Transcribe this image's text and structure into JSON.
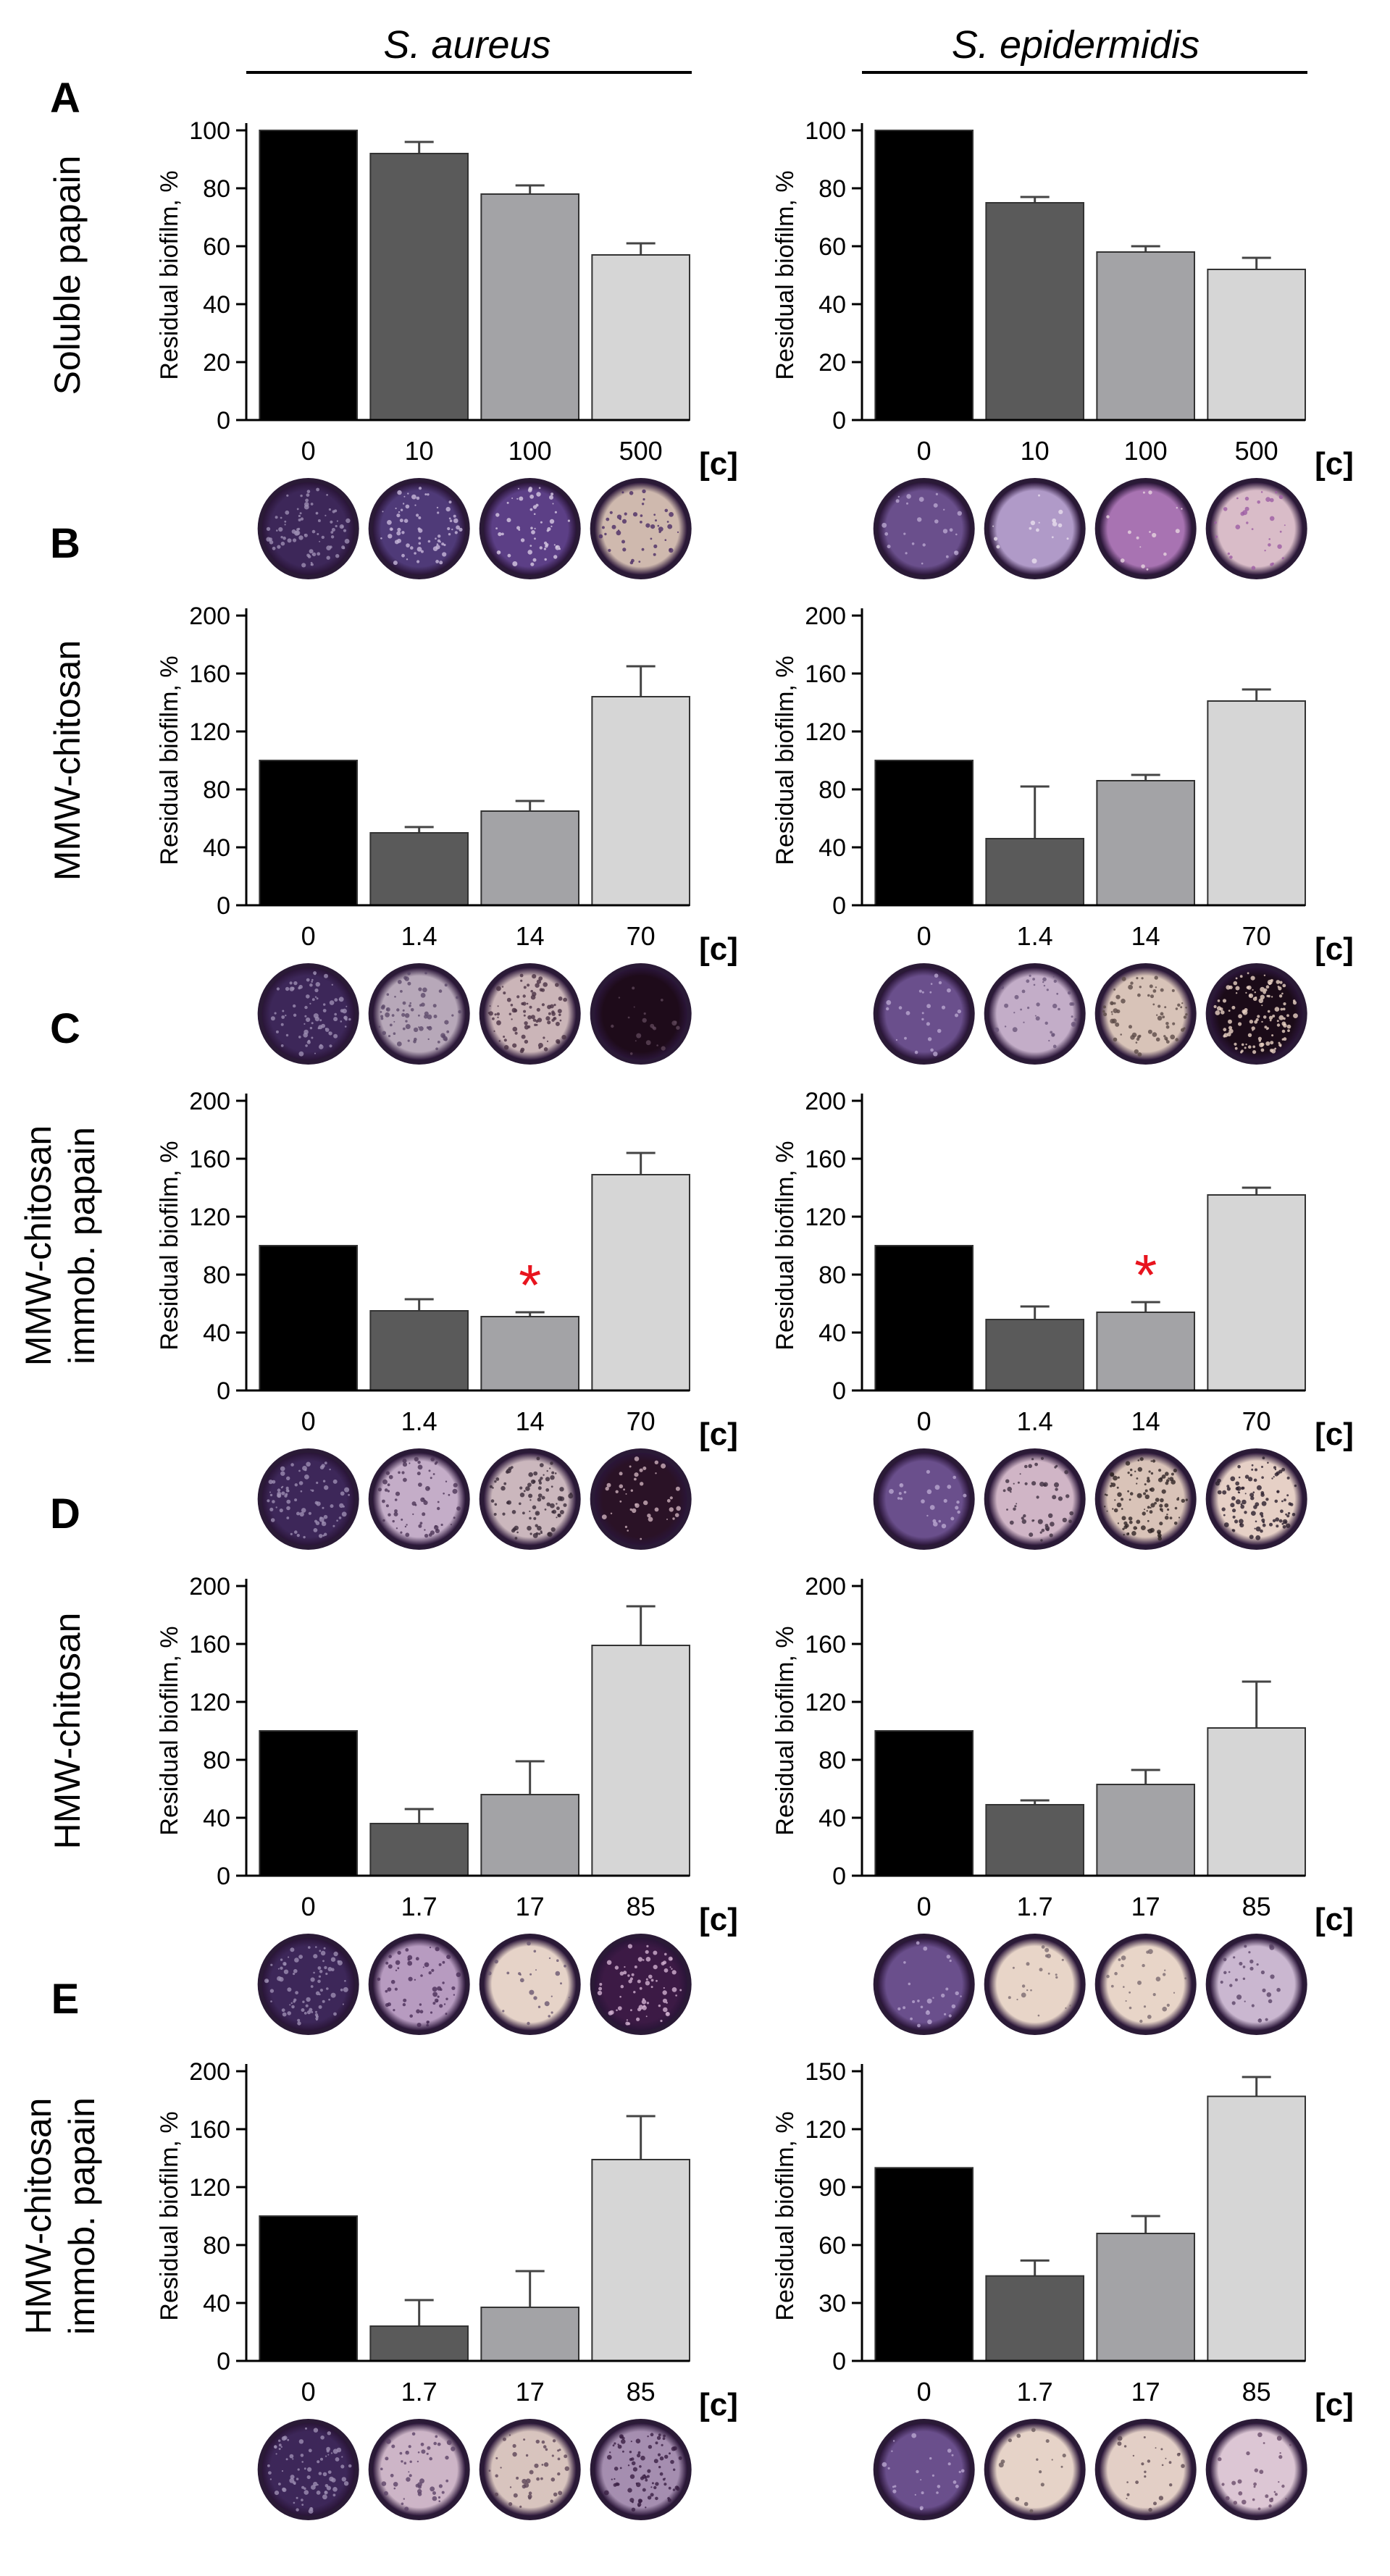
{
  "figure": {
    "species": [
      "S. aureus",
      "S. epidermidis"
    ],
    "conc_label": "[c]",
    "ylabel": "Residual biofilm, %"
  },
  "chart_data": [
    {
      "type": "bar",
      "panel": "A",
      "row_label": [
        "Soluble papain"
      ],
      "species": "S. aureus",
      "categories": [
        "0",
        "10",
        "100",
        "500"
      ],
      "values": [
        100,
        92,
        78,
        57
      ],
      "errors": [
        0,
        4,
        3,
        4
      ],
      "ylim": [
        0,
        100
      ],
      "yticks": [
        0,
        20,
        40,
        60,
        80,
        100
      ],
      "ylabel": "Residual biofilm, %",
      "xlabel": "[c]",
      "asterisk_index": null
    },
    {
      "type": "bar",
      "panel": "A",
      "row_label": [
        "Soluble papain"
      ],
      "species": "S. epidermidis",
      "categories": [
        "0",
        "10",
        "100",
        "500"
      ],
      "values": [
        100,
        75,
        58,
        52
      ],
      "errors": [
        0,
        2,
        2,
        4
      ],
      "ylim": [
        0,
        100
      ],
      "yticks": [
        0,
        20,
        40,
        60,
        80,
        100
      ],
      "ylabel": "Residual biofilm, %",
      "xlabel": "[c]",
      "asterisk_index": null
    },
    {
      "type": "bar",
      "panel": "B",
      "row_label": [
        "MMW-chitosan"
      ],
      "species": "S. aureus",
      "categories": [
        "0",
        "1.4",
        "14",
        "70"
      ],
      "values": [
        100,
        50,
        65,
        144
      ],
      "errors": [
        0,
        4,
        7,
        21
      ],
      "ylim": [
        0,
        200
      ],
      "yticks": [
        0,
        40,
        80,
        120,
        160,
        200
      ],
      "ylabel": "Residual biofilm, %",
      "xlabel": "[c]",
      "asterisk_index": null
    },
    {
      "type": "bar",
      "panel": "B",
      "row_label": [
        "MMW-chitosan"
      ],
      "species": "S. epidermidis",
      "categories": [
        "0",
        "1.4",
        "14",
        "70"
      ],
      "values": [
        100,
        46,
        86,
        141
      ],
      "errors": [
        0,
        36,
        4,
        8
      ],
      "ylim": [
        0,
        200
      ],
      "yticks": [
        0,
        40,
        80,
        120,
        160,
        200
      ],
      "ylabel": "Residual biofilm, %",
      "xlabel": "[c]",
      "asterisk_index": null
    },
    {
      "type": "bar",
      "panel": "C",
      "row_label": [
        "MMW-chitosan",
        "immob. papain"
      ],
      "species": "S. aureus",
      "categories": [
        "0",
        "1.4",
        "14",
        "70"
      ],
      "values": [
        100,
        55,
        51,
        149
      ],
      "errors": [
        0,
        8,
        3,
        15
      ],
      "ylim": [
        0,
        200
      ],
      "yticks": [
        0,
        40,
        80,
        120,
        160,
        200
      ],
      "ylabel": "Residual biofilm, %",
      "xlabel": "[c]",
      "asterisk_index": 2
    },
    {
      "type": "bar",
      "panel": "C",
      "row_label": [
        "MMW-chitosan",
        "immob. papain"
      ],
      "species": "S. epidermidis",
      "categories": [
        "0",
        "1.4",
        "14",
        "70"
      ],
      "values": [
        100,
        49,
        54,
        135
      ],
      "errors": [
        0,
        9,
        7,
        5
      ],
      "ylim": [
        0,
        200
      ],
      "yticks": [
        0,
        40,
        80,
        120,
        160,
        200
      ],
      "ylabel": "Residual biofilm, %",
      "xlabel": "[c]",
      "asterisk_index": 2
    },
    {
      "type": "bar",
      "panel": "D",
      "row_label": [
        "HMW-chitosan"
      ],
      "species": "S. aureus",
      "categories": [
        "0",
        "1.7",
        "17",
        "85"
      ],
      "values": [
        100,
        36,
        56,
        159
      ],
      "errors": [
        0,
        10,
        23,
        27
      ],
      "ylim": [
        0,
        200
      ],
      "yticks": [
        0,
        40,
        80,
        120,
        160,
        200
      ],
      "ylabel": "Residual biofilm, %",
      "xlabel": "[c]",
      "asterisk_index": null
    },
    {
      "type": "bar",
      "panel": "D",
      "row_label": [
        "HMW-chitosan"
      ],
      "species": "S. epidermidis",
      "categories": [
        "0",
        "1.7",
        "17",
        "85"
      ],
      "values": [
        100,
        49,
        63,
        102
      ],
      "errors": [
        0,
        3,
        10,
        32
      ],
      "ylim": [
        0,
        200
      ],
      "yticks": [
        0,
        40,
        80,
        120,
        160,
        200
      ],
      "ylabel": "Residual biofilm, %",
      "xlabel": "[c]",
      "asterisk_index": null
    },
    {
      "type": "bar",
      "panel": "E",
      "row_label": [
        "HMW-chitosan",
        "immob. papain"
      ],
      "species": "S. aureus",
      "categories": [
        "0",
        "1.7",
        "17",
        "85"
      ],
      "values": [
        100,
        24,
        37,
        139
      ],
      "errors": [
        0,
        18,
        25,
        30
      ],
      "ylim": [
        0,
        200
      ],
      "yticks": [
        0,
        40,
        80,
        120,
        160,
        200
      ],
      "ylabel": "Residual biofilm, %",
      "xlabel": "[c]",
      "asterisk_index": null
    },
    {
      "type": "bar",
      "panel": "E",
      "row_label": [
        "HMW-chitosan",
        "immob. papain"
      ],
      "species": "S. epidermidis",
      "categories": [
        "0",
        "1.7",
        "17",
        "85"
      ],
      "values": [
        100,
        44,
        66,
        137
      ],
      "errors": [
        0,
        8,
        9,
        10
      ],
      "ylim": [
        0,
        150
      ],
      "yticks": [
        0,
        30,
        60,
        90,
        120,
        150
      ],
      "ylabel": "Residual biofilm, %",
      "xlabel": "[c]",
      "asterisk_index": null
    }
  ],
  "colors": {
    "bars": [
      "#000000",
      "#5a5a5a",
      "#a3a3a6",
      "#d6d6d6"
    ],
    "asterisk": "#e8141e"
  },
  "wells": [
    [
      {
        "tone": "#3d2759",
        "speck": "#9c8db2",
        "n": 80
      },
      {
        "tone": "#4f3a78",
        "speck": "#c7b8da",
        "n": 70
      },
      {
        "tone": "#5c3f86",
        "speck": "#d7c9e2",
        "n": 55
      },
      {
        "tone": "#cfb9ae",
        "speck": "#4b2d65",
        "n": 45
      }
    ],
    [
      {
        "tone": "#6a4f8c",
        "speck": "#b9a6cf",
        "n": 25
      },
      {
        "tone": "#b09ac8",
        "speck": "#e9dfee",
        "n": 15
      },
      {
        "tone": "#a873b2",
        "speck": "#e6d4de",
        "n": 15
      },
      {
        "tone": "#d9bcc8",
        "speck": "#9c5ca4",
        "n": 30
      }
    ],
    [
      {
        "tone": "#3d2759",
        "speck": "#9c8db2",
        "n": 80
      },
      {
        "tone": "#b7a8b9",
        "speck": "#5c4a6a",
        "n": 70
      },
      {
        "tone": "#cbb5b8",
        "speck": "#4a3244",
        "n": 90
      },
      {
        "tone": "#1e0b1a",
        "speck": "#5c4558",
        "n": 20
      }
    ],
    [
      {
        "tone": "#6a4f8c",
        "speck": "#b9a6cf",
        "n": 25
      },
      {
        "tone": "#c3adc8",
        "speck": "#6b567a",
        "n": 40
      },
      {
        "tone": "#d8c3b8",
        "speck": "#5d4b47",
        "n": 70
      },
      {
        "tone": "#1b0b18",
        "speck": "#ead2c4",
        "n": 120
      }
    ],
    [
      {
        "tone": "#3d2759",
        "speck": "#9c8db2",
        "n": 80
      },
      {
        "tone": "#c4adc8",
        "speck": "#4c3556",
        "n": 70
      },
      {
        "tone": "#cbb7bd",
        "speck": "#3a2a38",
        "n": 90
      },
      {
        "tone": "#2a1226",
        "speck": "#cdb0bc",
        "n": 40
      }
    ],
    [
      {
        "tone": "#6a4f8c",
        "speck": "#b9a6cf",
        "n": 25
      },
      {
        "tone": "#d0b5c6",
        "speck": "#3f3040",
        "n": 50
      },
      {
        "tone": "#d9c3b8",
        "speck": "#2f2424",
        "n": 110
      },
      {
        "tone": "#e6d0c6",
        "speck": "#2a1e2c",
        "n": 100
      }
    ],
    [
      {
        "tone": "#3d2759",
        "speck": "#9c8db2",
        "n": 80
      },
      {
        "tone": "#b79bc0",
        "speck": "#4a2e58",
        "n": 60
      },
      {
        "tone": "#e6d3c8",
        "speck": "#6a5870",
        "n": 25
      },
      {
        "tone": "#3c1a45",
        "speck": "#d1b0d0",
        "n": 70
      }
    ],
    [
      {
        "tone": "#6a4f8c",
        "speck": "#b9a6cf",
        "n": 25
      },
      {
        "tone": "#e8d5c8",
        "speck": "#7a6a70",
        "n": 20
      },
      {
        "tone": "#e8d5c8",
        "speck": "#7a6a70",
        "n": 25
      },
      {
        "tone": "#cab7d0",
        "speck": "#5a4466",
        "n": 30
      }
    ],
    [
      {
        "tone": "#3d2759",
        "speck": "#9c8db2",
        "n": 80
      },
      {
        "tone": "#cdb5c7",
        "speck": "#5c4468",
        "n": 50
      },
      {
        "tone": "#d8c4be",
        "speck": "#5e4658",
        "n": 45
      },
      {
        "tone": "#a58eb0",
        "speck": "#3a1f44",
        "n": 90
      }
    ],
    [
      {
        "tone": "#6a4f8c",
        "speck": "#b9a6cf",
        "n": 25
      },
      {
        "tone": "#e6d3c8",
        "speck": "#6a5a5c",
        "n": 15
      },
      {
        "tone": "#e3cfc6",
        "speck": "#5e4a52",
        "n": 25
      },
      {
        "tone": "#dcc6d4",
        "speck": "#6a4c6a",
        "n": 30
      }
    ]
  ]
}
